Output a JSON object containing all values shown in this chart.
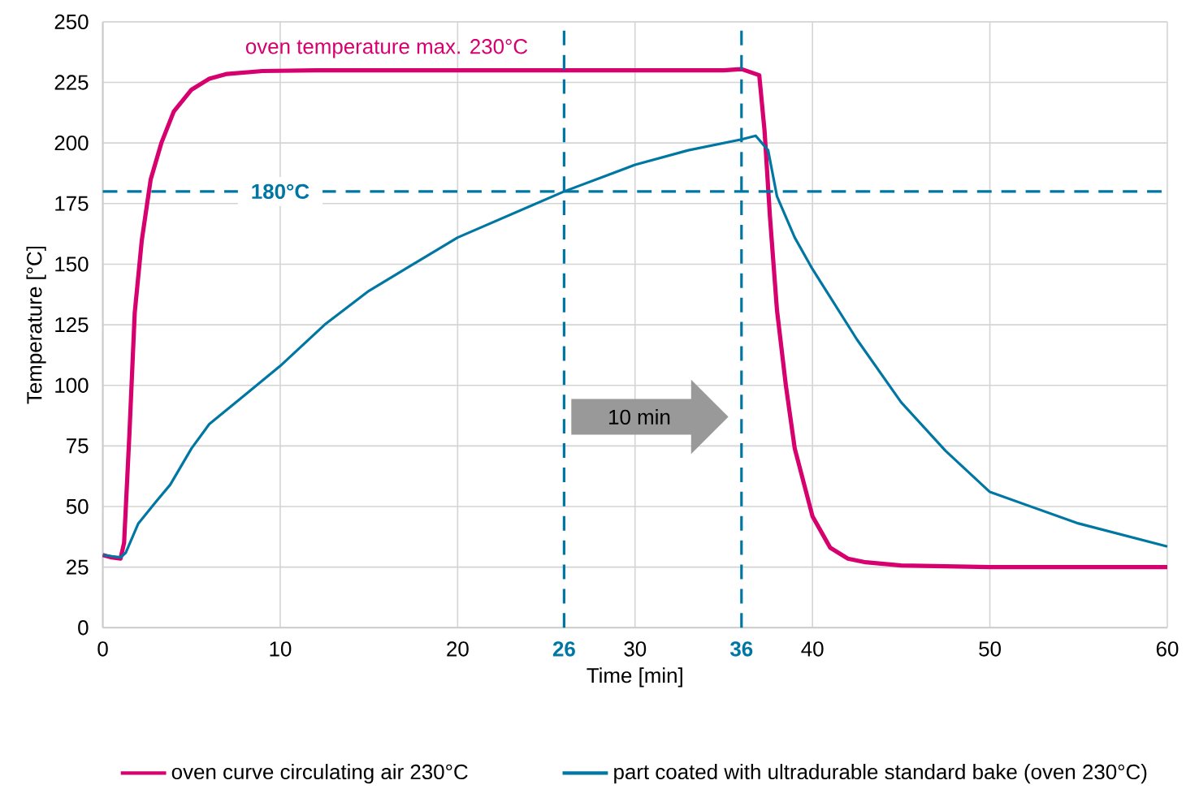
{
  "chart_data": {
    "type": "line",
    "xlabel": "Time [min]",
    "ylabel": "Temperature [°C]",
    "xlim": [
      0,
      60
    ],
    "ylim": [
      0,
      250
    ],
    "xticks": [
      0,
      10,
      20,
      30,
      40,
      50,
      60
    ],
    "yticks": [
      0,
      25,
      50,
      75,
      100,
      125,
      150,
      175,
      200,
      225,
      250
    ],
    "grid": true,
    "legend": "bottom",
    "marker": "none",
    "line_style": "solid",
    "series": [
      {
        "name": "oven curve circulating air 230°C",
        "color": "#d6006f",
        "x": [
          0,
          0.5,
          1,
          1.2,
          1.5,
          1.8,
          2.2,
          2.7,
          3.3,
          4,
          5,
          6,
          7,
          9,
          12,
          20,
          30,
          35,
          36,
          37,
          37.3,
          37.6,
          38,
          38.5,
          39,
          40,
          41,
          42,
          43,
          45,
          50,
          60
        ],
        "values": [
          30,
          29,
          28.5,
          35,
          80,
          130,
          160,
          185,
          200,
          213,
          222,
          226.5,
          228.5,
          229.7,
          230,
          230,
          230,
          230,
          230.5,
          228,
          205,
          170,
          131,
          100,
          74,
          46,
          33,
          28.5,
          27,
          25.7,
          25,
          25
        ]
      },
      {
        "name": "part coated with ultradurable standard bake (oven 230°C)",
        "color": "#0077a3",
        "x": [
          0,
          0.5,
          1,
          1.3,
          2,
          3,
          3.8,
          5,
          6,
          8,
          10,
          12.5,
          15,
          20,
          26,
          30,
          33,
          36,
          36.8,
          37.5,
          38,
          39,
          40,
          42.5,
          45,
          47.5,
          50,
          55,
          60
        ],
        "values": [
          30,
          29.5,
          29,
          31,
          43,
          52,
          59,
          74,
          84,
          96,
          108,
          125,
          139,
          161,
          180,
          191,
          197,
          201.5,
          203,
          197,
          178,
          161,
          148,
          119,
          93,
          73,
          56,
          43,
          33.5
        ]
      }
    ],
    "ref_lines": [
      {
        "axis": "y",
        "value": 180,
        "label": "180°C",
        "color": "#0077a3",
        "line_style": "dashed"
      },
      {
        "axis": "x",
        "value": 26,
        "label": "26",
        "color": "#0077a3",
        "line_style": "dashed"
      },
      {
        "axis": "x",
        "value": 36,
        "label": "36",
        "color": "#0077a3",
        "line_style": "dashed"
      }
    ],
    "annotations": [
      {
        "text": "oven temperature max. 230°C",
        "x": 16,
        "y": 230
      },
      "10 min"
    ]
  }
}
